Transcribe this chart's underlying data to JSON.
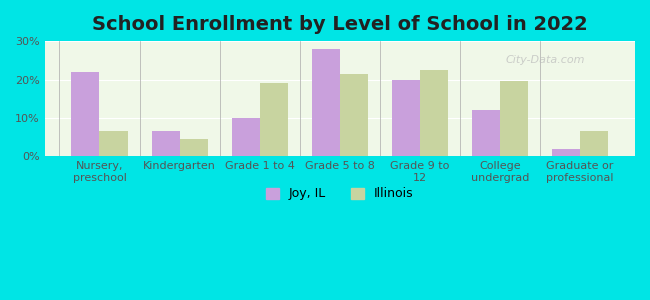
{
  "title": "School Enrollment by Level of School in 2022",
  "categories": [
    "Nursery,\npreschool",
    "Kindergarten",
    "Grade 1 to 4",
    "Grade 5 to 8",
    "Grade 9 to\n12",
    "College\nundergrad",
    "Graduate or\nprofessional"
  ],
  "joy_il": [
    22,
    6.5,
    10,
    28,
    20,
    12,
    2
  ],
  "illinois": [
    6.5,
    4.5,
    19,
    21.5,
    22.5,
    19.5,
    6.5
  ],
  "joy_color": "#c9a0dc",
  "illinois_color": "#c8d4a0",
  "background_color": "#00e5e5",
  "plot_bg_color": "#f0f8e8",
  "ylim": [
    0,
    30
  ],
  "yticks": [
    0,
    10,
    20,
    30
  ],
  "ytick_labels": [
    "0%",
    "10%",
    "20%",
    "30%"
  ],
  "legend_joy": "Joy, IL",
  "legend_illinois": "Illinois",
  "watermark": "City-Data.com",
  "title_fontsize": 14,
  "tick_fontsize": 8,
  "legend_fontsize": 9,
  "bar_width": 0.35
}
